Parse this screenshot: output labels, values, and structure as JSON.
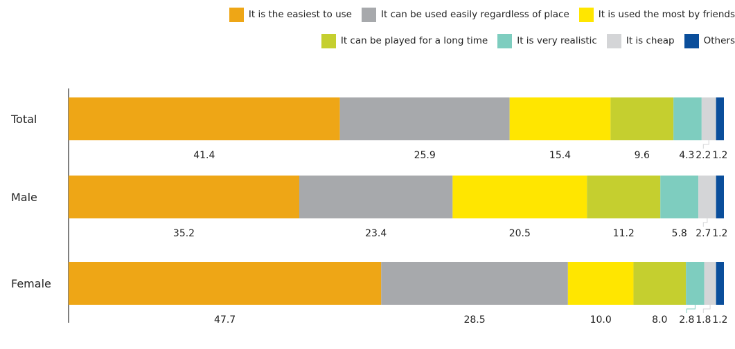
{
  "chart_data": {
    "type": "bar",
    "orientation": "horizontal",
    "stacked": true,
    "categories": [
      "Total",
      "Male",
      "Female"
    ],
    "series": [
      {
        "name": "It is the easiest to use",
        "color": "#eea616",
        "values": [
          41.4,
          35.2,
          47.7
        ]
      },
      {
        "name": "It can be used easily regardless of place",
        "color": "#a7a9ac",
        "values": [
          25.9,
          23.4,
          28.5
        ]
      },
      {
        "name": "It is used the most by friends",
        "color": "#ffe600",
        "values": [
          15.4,
          20.5,
          10.0
        ]
      },
      {
        "name": "It can be played for a long time",
        "color": "#c5cf2f",
        "values": [
          9.6,
          11.2,
          8.0
        ]
      },
      {
        "name": "It is very realistic",
        "color": "#7ecdbf",
        "values": [
          4.3,
          5.8,
          2.8
        ]
      },
      {
        "name": "It is cheap",
        "color": "#d4d5d7",
        "values": [
          2.2,
          2.7,
          1.8
        ]
      },
      {
        "name": "Others",
        "color": "#0a4e9b",
        "values": [
          1.2,
          1.2,
          1.2
        ]
      }
    ],
    "value_labels": [
      [
        "41.4",
        "25.9",
        "15.4",
        "9.6",
        "4.3",
        "2.2",
        "1.2"
      ],
      [
        "35.2",
        "23.4",
        "20.5",
        "11.2",
        "5.8",
        "2.7",
        "1.2"
      ],
      [
        "47.7",
        "28.5",
        "10.0",
        "8.0",
        "2.8",
        "1.8",
        "1.2"
      ]
    ],
    "xlim": [
      0,
      100
    ],
    "legend_position": "top-right",
    "grid": false
  }
}
